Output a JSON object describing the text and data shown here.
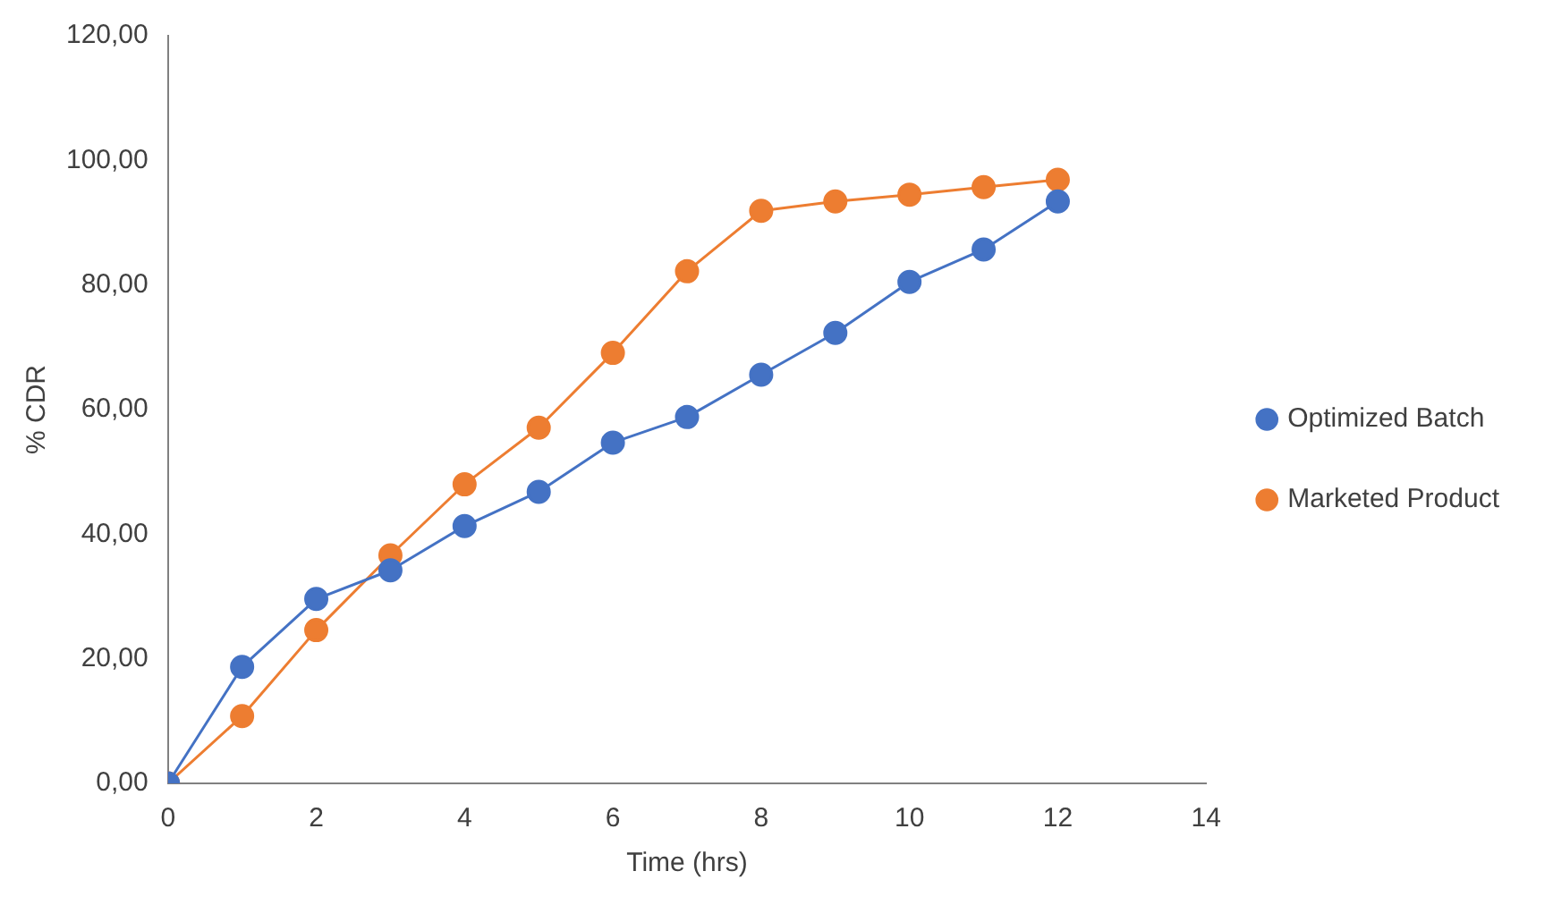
{
  "chart_data": {
    "type": "line",
    "xlabel": "Time (hrs)",
    "ylabel": "% CDR",
    "x": [
      0,
      1,
      2,
      3,
      4,
      5,
      6,
      7,
      8,
      9,
      10,
      11,
      12
    ],
    "series": [
      {
        "name": "Optimized Batch",
        "color": "#4472c4",
        "values": [
          0,
          18.7,
          29.6,
          34.2,
          41.3,
          46.8,
          54.7,
          58.8,
          65.6,
          72.3,
          80.5,
          85.7,
          93.4
        ]
      },
      {
        "name": "Marketed Product",
        "color": "#ed7d31",
        "values": [
          0,
          10.8,
          24.6,
          36.6,
          48,
          57.1,
          69.1,
          82.2,
          91.9,
          93.4,
          94.5,
          95.7,
          96.9
        ]
      }
    ],
    "xlim": [
      0,
      14
    ],
    "xticks": [
      0,
      2,
      4,
      6,
      8,
      10,
      12,
      14
    ],
    "ylim": [
      0,
      120
    ],
    "yticks": [
      {
        "value": 0,
        "label": "0,00"
      },
      {
        "value": 20,
        "label": "20,00"
      },
      {
        "value": 40,
        "label": "40,00"
      },
      {
        "value": 60,
        "label": "60,00"
      },
      {
        "value": 80,
        "label": "80,00"
      },
      {
        "value": 100,
        "label": "100,00"
      },
      {
        "value": 120,
        "label": "120,00"
      }
    ],
    "marker": "circle",
    "line_style": "solid",
    "legend": "right",
    "grid": false
  }
}
